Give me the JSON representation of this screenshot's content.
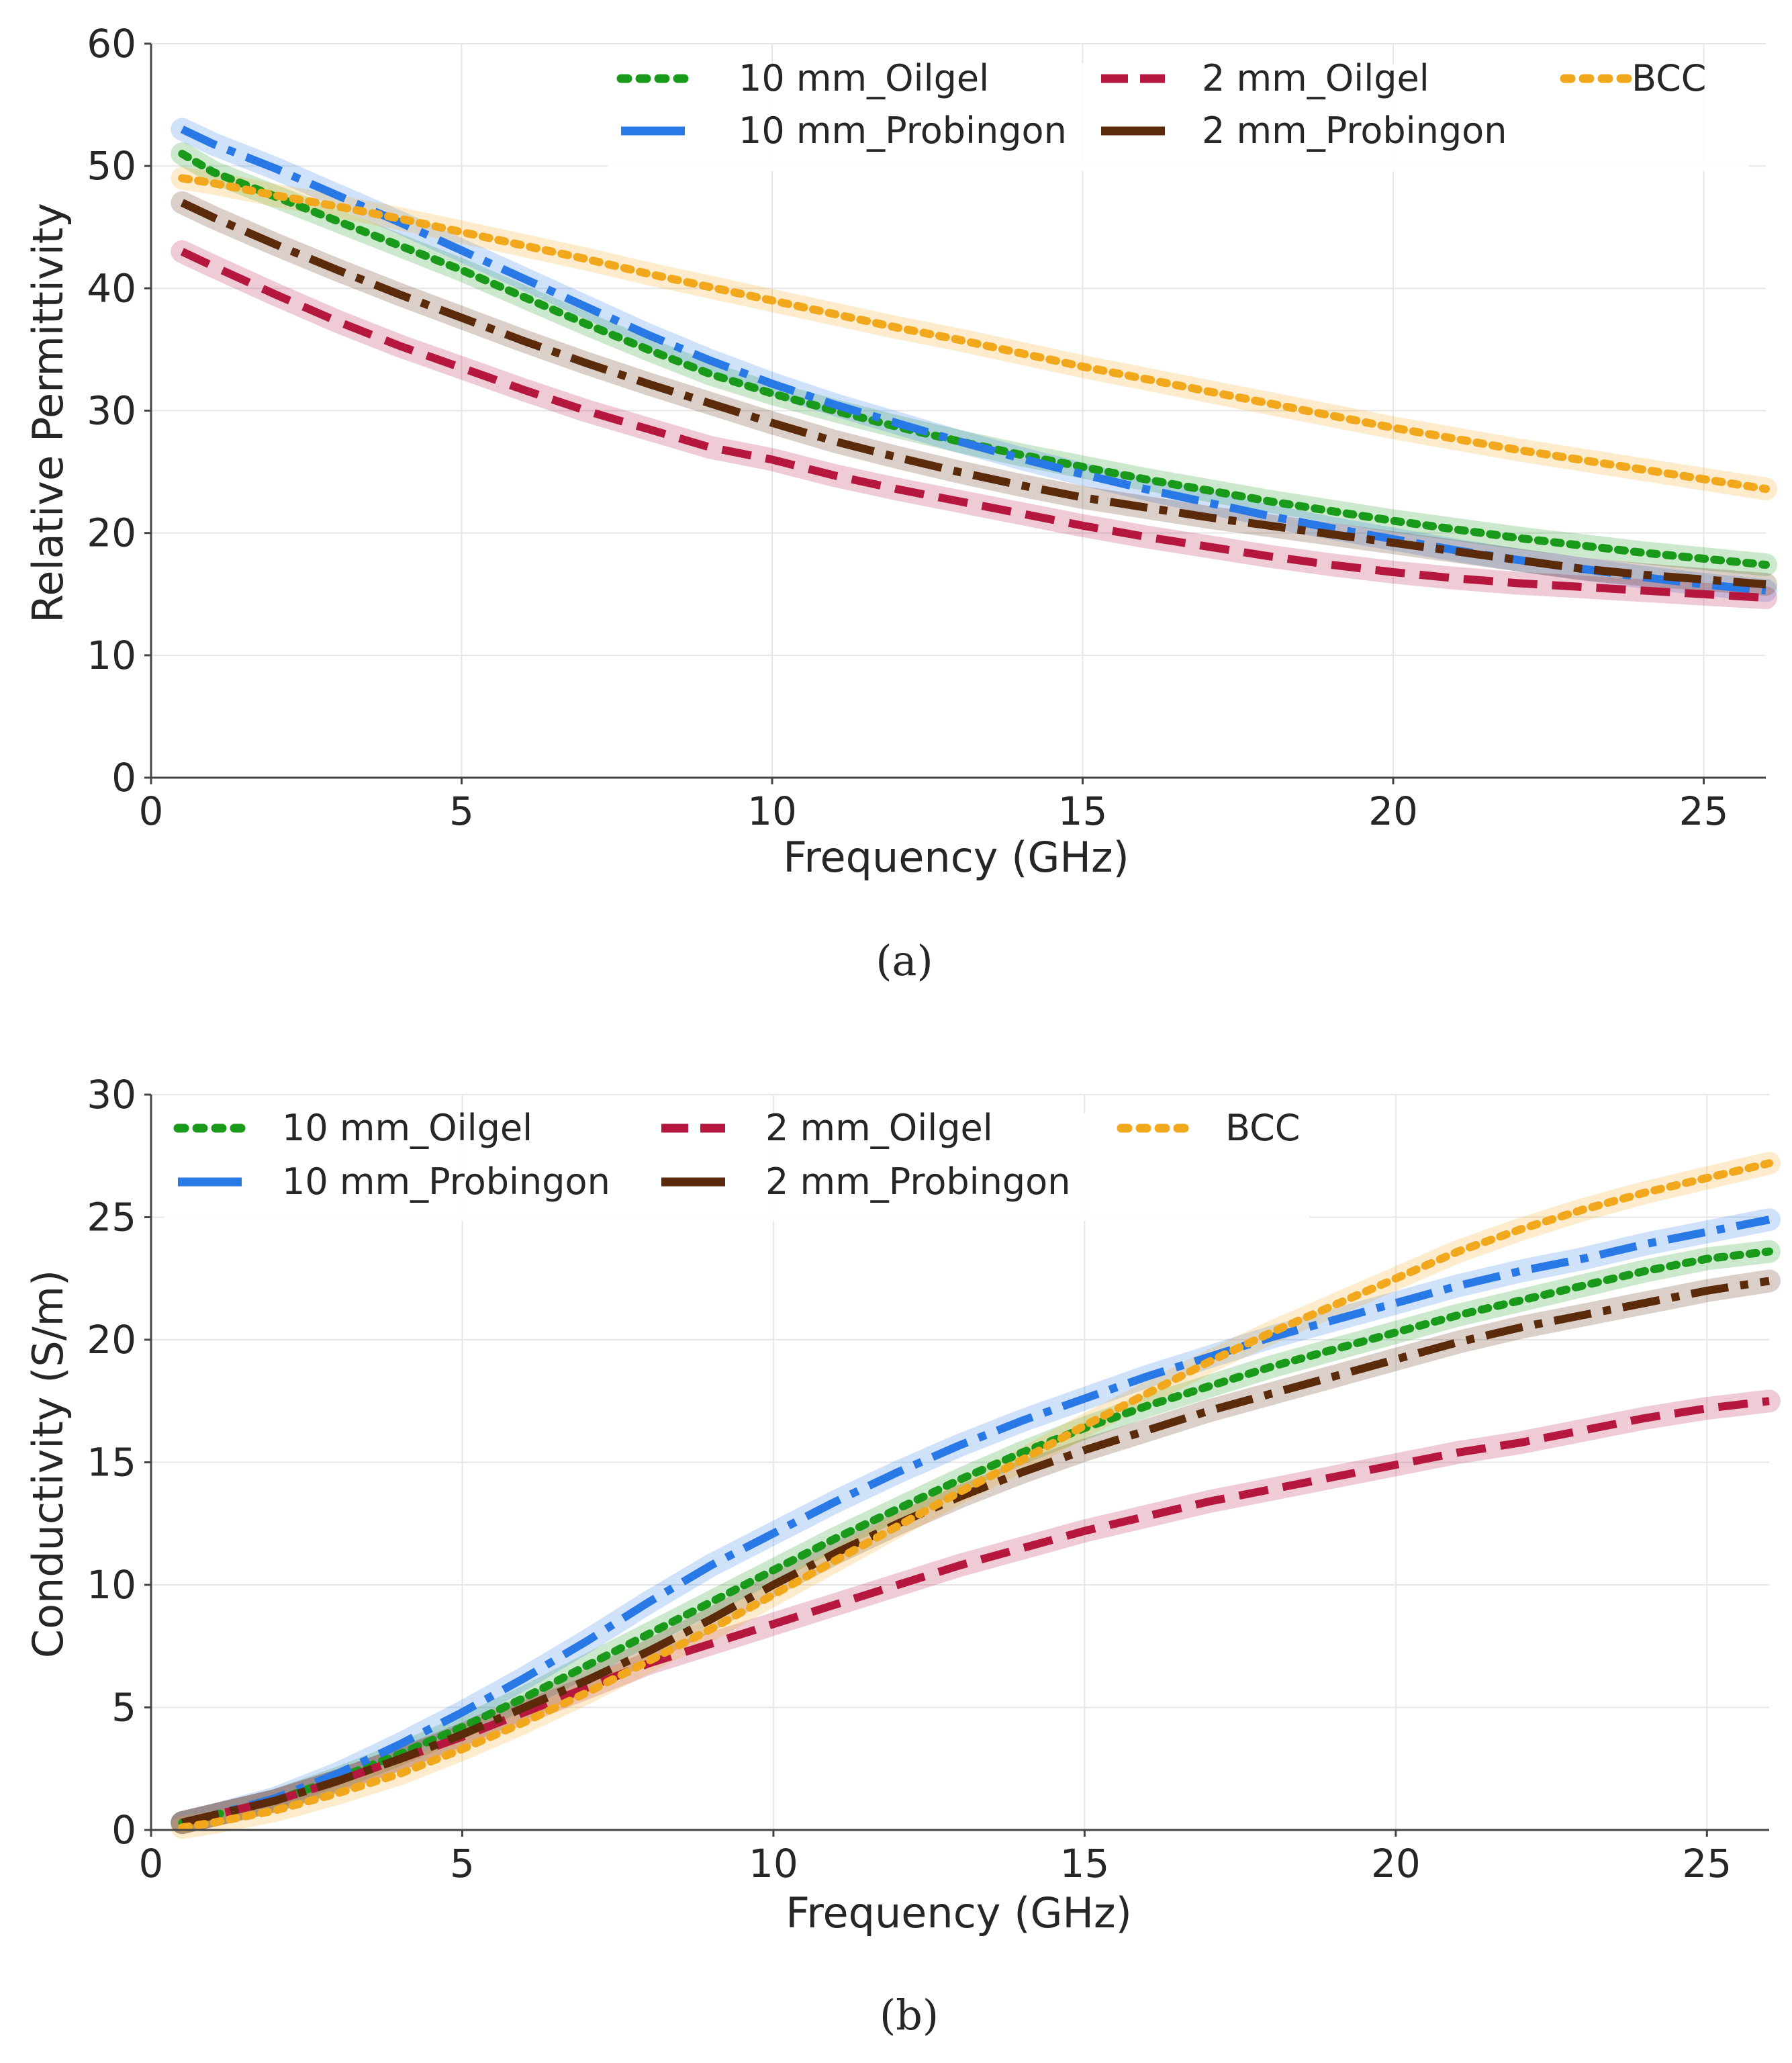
{
  "chart_data": [
    {
      "type": "line",
      "panel": "a",
      "caption": "(a)",
      "xlabel": "Frequency (GHz)",
      "ylabel": "Relative Permittivity",
      "xlim": [
        0,
        26
      ],
      "ylim": [
        0,
        60
      ],
      "xticks": [
        0,
        5,
        10,
        15,
        20,
        25
      ],
      "yticks": [
        0,
        10,
        20,
        30,
        40,
        50,
        60
      ],
      "grid": true,
      "legend_position": "top-right",
      "x": [
        0.5,
        1,
        2,
        3,
        4,
        5,
        6,
        7,
        8,
        9,
        10,
        11,
        12,
        13,
        14,
        15,
        16,
        17,
        18,
        19,
        20,
        21,
        22,
        23,
        24,
        25,
        26
      ],
      "series": [
        {
          "name": "10 mm_Oilgel",
          "color": "#1a9a1a",
          "style": "dotted",
          "values": [
            51,
            49.5,
            47.5,
            45.5,
            43.5,
            41.5,
            39.3,
            37.1,
            35,
            33,
            31.4,
            30,
            28.7,
            27.5,
            26.4,
            25.4,
            24.4,
            23.5,
            22.6,
            21.8,
            21,
            20.3,
            19.6,
            19,
            18.4,
            17.9,
            17.4
          ]
        },
        {
          "name": "10 mm_Probingon",
          "color": "#2878e6",
          "style": "dashdot",
          "values": [
            53,
            51.8,
            49.8,
            47.6,
            45.4,
            43.1,
            40.8,
            38.5,
            36.2,
            34.1,
            32.2,
            30.5,
            29,
            27.5,
            26.1,
            24.8,
            23.6,
            22.5,
            21.4,
            20.4,
            19.5,
            18.6,
            17.8,
            17.1,
            16.4,
            15.8,
            15.3
          ]
        },
        {
          "name": "2 mm_Oilgel",
          "color": "#b5173f",
          "style": "dashed",
          "values": [
            43,
            41.8,
            39.5,
            37.3,
            35.3,
            33.5,
            31.7,
            30,
            28.5,
            27,
            26,
            24.7,
            23.6,
            22.6,
            21.6,
            20.6,
            19.7,
            18.9,
            18.1,
            17.4,
            16.8,
            16.3,
            15.9,
            15.6,
            15.3,
            15,
            14.7
          ]
        },
        {
          "name": "2 mm_Probingon",
          "color": "#5a2a0a",
          "style": "dashdot",
          "values": [
            47,
            45.8,
            43.6,
            41.5,
            39.5,
            37.6,
            35.7,
            33.9,
            32.2,
            30.6,
            29,
            27.5,
            26.2,
            25,
            23.9,
            22.9,
            22.1,
            21.3,
            20.6,
            19.9,
            19.2,
            18.5,
            17.8,
            17.1,
            16.6,
            16.2,
            15.8
          ]
        },
        {
          "name": "BCC",
          "color": "#f2a81d",
          "style": "dotted",
          "values": [
            49,
            48.6,
            47.6,
            46.7,
            45.7,
            44.6,
            43.5,
            42.4,
            41.2,
            40.1,
            39,
            37.9,
            36.8,
            35.8,
            34.7,
            33.6,
            32.6,
            31.6,
            30.6,
            29.6,
            28.6,
            27.7,
            26.8,
            26,
            25.2,
            24.4,
            23.6
          ]
        }
      ]
    },
    {
      "type": "line",
      "panel": "b",
      "caption": "(b)",
      "xlabel": "Frequency (GHz)",
      "ylabel": "Conductivity (S/m)",
      "xlim": [
        0,
        26
      ],
      "ylim": [
        0,
        30
      ],
      "xticks": [
        0,
        5,
        10,
        15,
        20,
        25
      ],
      "yticks": [
        0,
        5,
        10,
        15,
        20,
        25,
        30
      ],
      "grid": true,
      "legend_position": "top-left",
      "x": [
        0.5,
        1,
        2,
        3,
        4,
        5,
        6,
        7,
        8,
        9,
        10,
        11,
        12,
        13,
        14,
        15,
        16,
        17,
        18,
        19,
        20,
        21,
        22,
        23,
        24,
        25,
        26
      ],
      "series": [
        {
          "name": "10 mm_Oilgel",
          "color": "#1a9a1a",
          "style": "dotted",
          "values": [
            0.3,
            0.6,
            1.2,
            2.1,
            3.1,
            4.2,
            5.4,
            6.7,
            8,
            9.3,
            10.6,
            11.9,
            13.1,
            14.3,
            15.4,
            16.4,
            17.3,
            18.1,
            18.9,
            19.6,
            20.3,
            21,
            21.6,
            22.2,
            22.8,
            23.3,
            23.6
          ]
        },
        {
          "name": "10 mm_Probingon",
          "color": "#2878e6",
          "style": "dashdot",
          "values": [
            0.3,
            0.6,
            1.3,
            2.3,
            3.5,
            4.8,
            6.2,
            7.7,
            9.3,
            10.8,
            12.1,
            13.4,
            14.6,
            15.7,
            16.7,
            17.6,
            18.5,
            19.3,
            20.1,
            20.8,
            21.5,
            22.2,
            22.8,
            23.3,
            23.9,
            24.4,
            24.9
          ]
        },
        {
          "name": "2 mm_Oilgel",
          "color": "#b5173f",
          "style": "dashed",
          "values": [
            0.3,
            0.6,
            1.2,
            2,
            2.9,
            3.8,
            4.8,
            5.8,
            6.8,
            7.6,
            8.4,
            9.2,
            10,
            10.8,
            11.5,
            12.2,
            12.8,
            13.4,
            13.9,
            14.4,
            14.9,
            15.4,
            15.8,
            16.3,
            16.8,
            17.2,
            17.5
          ]
        },
        {
          "name": "2 mm_Probingon",
          "color": "#5a2a0a",
          "style": "dashdot",
          "values": [
            0.3,
            0.6,
            1.2,
            2,
            2.9,
            3.9,
            5,
            6.1,
            7.3,
            8.6,
            10,
            11.3,
            12.5,
            13.6,
            14.6,
            15.5,
            16.3,
            17.1,
            17.8,
            18.5,
            19.2,
            19.9,
            20.5,
            21,
            21.5,
            22,
            22.4
          ]
        },
        {
          "name": "BCC",
          "color": "#f2a81d",
          "style": "dotted",
          "values": [
            0.1,
            0.3,
            0.8,
            1.5,
            2.3,
            3.3,
            4.4,
            5.6,
            6.9,
            8.2,
            9.6,
            11,
            12.4,
            13.8,
            15.1,
            16.5,
            17.8,
            19.1,
            20.3,
            21.4,
            22.5,
            23.6,
            24.5,
            25.3,
            26,
            26.6,
            27.2
          ]
        }
      ]
    }
  ]
}
